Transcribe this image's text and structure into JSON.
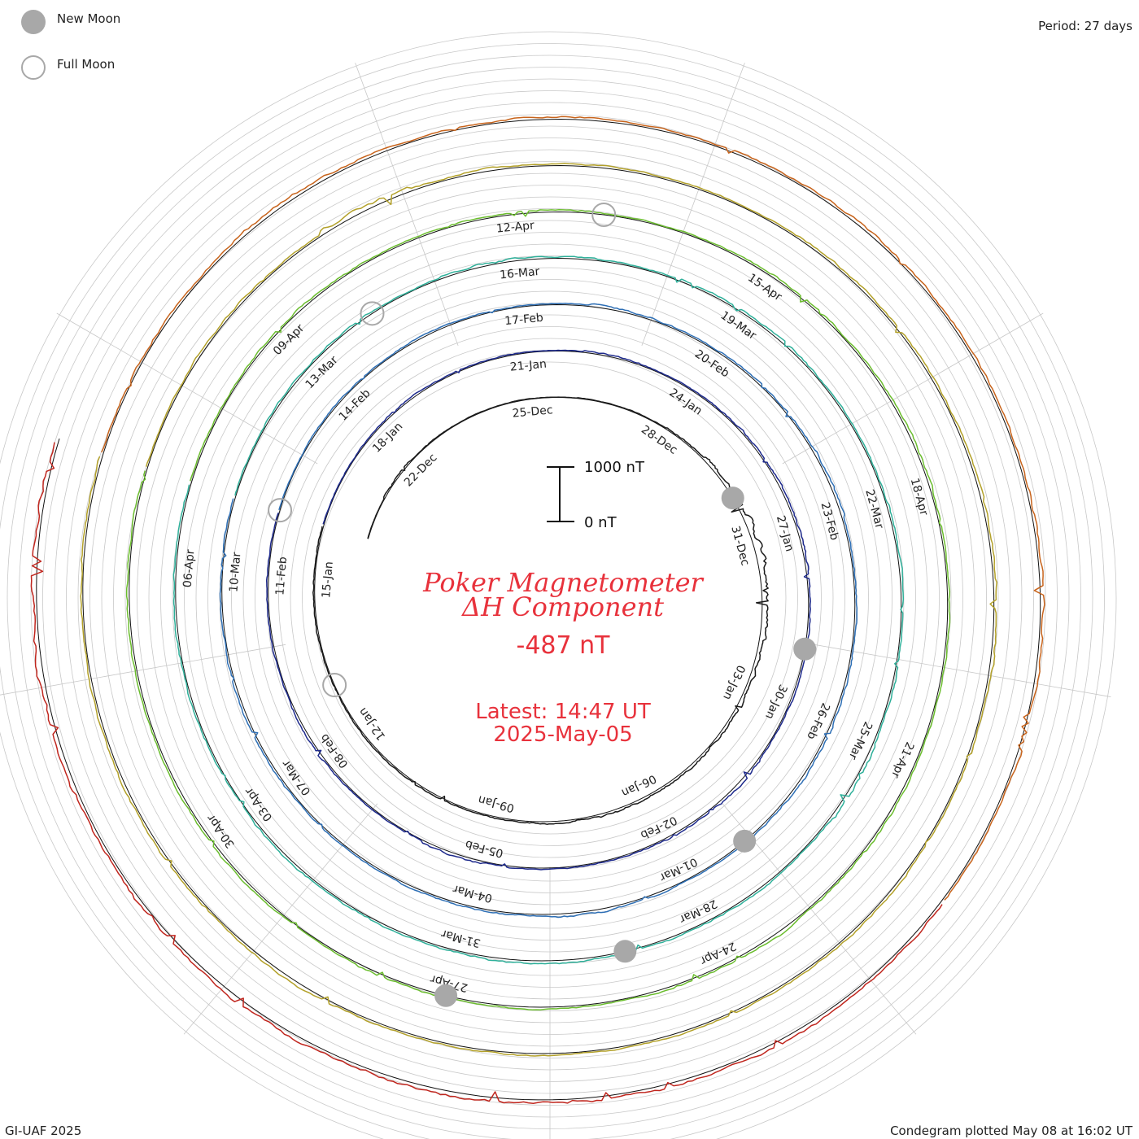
{
  "legend": {
    "new_moon": "New Moon",
    "full_moon": "Full Moon",
    "new_moon_color": "#a8a8a8",
    "full_moon_color": "#a8a8a8"
  },
  "period_label": "Period: 27 days",
  "footer_left": "GI-UAF 2025",
  "footer_right": "Condegram plotted May 08 at 16:02 UT",
  "center": {
    "title_line1": "Poker Magnetometer",
    "title_line2": "ΔH Component",
    "value": "-487 nT",
    "latest": "Latest: 14:47 UT",
    "date": "2025-May-05",
    "color": "#e8323c"
  },
  "scale": {
    "top_label": "1000 nT",
    "bottom_label": "0 nT"
  },
  "chart_data": {
    "type": "line",
    "layout": "spiral condegram",
    "period_days": 27,
    "start_date": "2024-12-20",
    "end_date": "2025-05-05",
    "units": "nT",
    "series": [
      {
        "color": "#1a1a1a",
        "activity": [
          0.15,
          0.55,
          0.3,
          0.2,
          0.2,
          0.1,
          0.2,
          0.3,
          0.55,
          1.3,
          2.2,
          2.4,
          1.8,
          1.4,
          1.3,
          1.0,
          0.9,
          0.9,
          0.7,
          0.6,
          0.5,
          0.6,
          0.5,
          0.4,
          0.4,
          0.5,
          0.4
        ]
      },
      {
        "color": "#1e2a8c",
        "activity": [
          0.3,
          0.4,
          0.6,
          0.5,
          0.4,
          0.3,
          0.6,
          0.4,
          0.5,
          0.7,
          0.8,
          0.9,
          0.7,
          0.6,
          0.5,
          0.9,
          0.7,
          0.5,
          0.4,
          0.5,
          0.9,
          0.4,
          0.6,
          0.8,
          0.5,
          0.5,
          0.4
        ]
      },
      {
        "color": "#2e6fb5",
        "activity": [
          0.3,
          0.5,
          0.4,
          0.6,
          0.5,
          0.4,
          0.9,
          0.5,
          0.6,
          0.7,
          0.9,
          0.6,
          0.6,
          0.7,
          0.9,
          0.8,
          0.5,
          0.6,
          1.0,
          0.7,
          0.8,
          0.5,
          0.6,
          0.7,
          0.8,
          0.6,
          0.5
        ]
      },
      {
        "color": "#2fb09a",
        "activity": [
          0.4,
          0.6,
          0.7,
          0.5,
          0.9,
          0.6,
          0.5,
          0.8,
          0.9,
          0.6,
          0.5,
          0.8,
          0.6,
          0.7,
          1.2,
          0.6,
          0.8,
          0.6,
          1.0,
          0.9,
          0.7,
          0.6,
          0.8,
          0.5,
          0.6,
          0.7,
          0.6
        ]
      },
      {
        "color": "#6bbd2e",
        "activity": [
          0.5,
          0.7,
          0.8,
          0.6,
          0.7,
          0.9,
          0.5,
          0.6,
          0.8,
          0.7,
          0.9,
          0.6,
          0.7,
          0.6,
          0.8,
          0.7,
          0.9,
          0.8,
          0.6,
          0.7,
          0.9,
          0.6,
          0.8,
          0.7,
          0.6,
          0.8,
          0.7
        ]
      },
      {
        "color": "#b3a12a",
        "activity": [
          0.6,
          0.8,
          0.7,
          1.5,
          0.9,
          0.8,
          0.7,
          0.6,
          0.9,
          0.8,
          0.7,
          0.9,
          1.2,
          0.8,
          0.6,
          0.9,
          0.7,
          0.8,
          0.6,
          0.7,
          0.8,
          1.0,
          0.7,
          0.9,
          0.8,
          0.6,
          0.9
        ]
      },
      {
        "color": "#c8641c",
        "activity": [
          0.7,
          0.9,
          1.4,
          1.0,
          0.8,
          0.9,
          0.7,
          0.8,
          1.0,
          0.9,
          0.8,
          1.1,
          1.3,
          1.0,
          0.8
        ]
      },
      {
        "color": "#c0261e",
        "activity": [
          0.9,
          1.3,
          1.4,
          1.2,
          1.6,
          1.4,
          1.5,
          1.2,
          1.1,
          1.4,
          1.8,
          1.5
        ]
      }
    ],
    "day_labels": [
      [
        "22-Dec",
        "25-Dec",
        "28-Dec",
        "31-Dec",
        "03-Jan",
        "06-Jan",
        "09-Jan",
        "12-Jan",
        "15-Jan"
      ],
      [
        "18-Jan",
        "21-Jan",
        "24-Jan",
        "27-Jan",
        "30-Jan",
        "02-Feb",
        "05-Feb",
        "08-Feb",
        "11-Feb"
      ],
      [
        "14-Feb",
        "17-Feb",
        "20-Feb",
        "23-Feb",
        "26-Feb",
        "01-Mar",
        "04-Mar",
        "07-Mar",
        "10-Mar"
      ],
      [
        "13-Mar",
        "16-Mar",
        "19-Mar",
        "22-Mar",
        "25-Mar",
        "28-Mar",
        "31-Mar",
        "03-Apr",
        "06-Apr"
      ],
      [
        "09-Apr",
        "12-Apr",
        "15-Apr",
        "18-Apr",
        "21-Apr",
        "24-Apr",
        "27-Apr",
        "30-Apr"
      ]
    ],
    "moon_phases": [
      {
        "type": "new",
        "date": "2024-12-30"
      },
      {
        "type": "full",
        "date": "2025-01-13"
      },
      {
        "type": "new",
        "date": "2025-01-29"
      },
      {
        "type": "full",
        "date": "2025-02-12"
      },
      {
        "type": "new",
        "date": "2025-02-28"
      },
      {
        "type": "full",
        "date": "2025-03-14"
      },
      {
        "type": "new",
        "date": "2025-03-29"
      },
      {
        "type": "full",
        "date": "2025-04-13"
      },
      {
        "type": "new",
        "date": "2025-04-27"
      }
    ]
  }
}
